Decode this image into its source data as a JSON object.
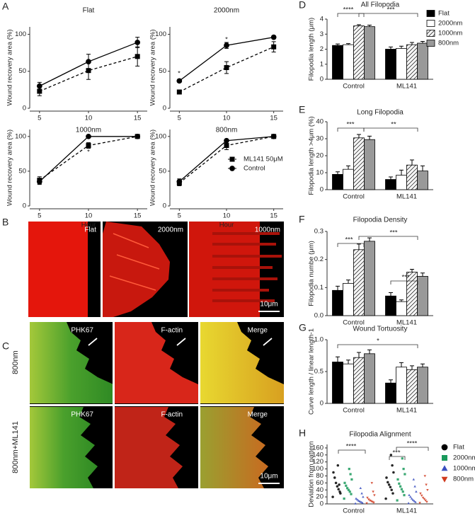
{
  "figure": {
    "panel_letters": [
      "A",
      "B",
      "C",
      "D",
      "E",
      "F",
      "G",
      "H"
    ],
    "panel_b": {
      "labels": [
        "Flat",
        "2000nm",
        "1000nm"
      ],
      "scale_bar": "10μm"
    },
    "panel_c": {
      "columns": [
        "PHK67",
        "F-actin",
        "Merge"
      ],
      "rows": [
        "800nm",
        "800nm+ML141"
      ],
      "scale_bar": "10μm"
    }
  },
  "chart_data": [
    {
      "type": "line",
      "title": "Flat",
      "ylabel": "Wound recovery area (%)",
      "x": [
        5,
        10,
        15
      ],
      "xlim": [
        4,
        16
      ],
      "xticks": [
        5,
        10,
        15
      ],
      "ylim": [
        0,
        110
      ],
      "yticks": [
        0,
        50,
        100
      ],
      "series": [
        {
          "name": "ML141 50μM",
          "color": "#000000",
          "marker": "square",
          "line_style": "dashed",
          "values": [
            23,
            51,
            70
          ],
          "errors": [
            6,
            12,
            13
          ]
        },
        {
          "name": "Control",
          "color": "#000000",
          "marker": "circle",
          "line_style": "solid",
          "values": [
            30,
            63,
            89
          ],
          "errors": [
            5,
            10,
            7
          ]
        }
      ]
    },
    {
      "type": "line",
      "title": "2000nm",
      "ylabel": "Wound recovery area (%)",
      "x": [
        5,
        10,
        15
      ],
      "xlim": [
        4,
        16
      ],
      "xticks": [
        5,
        10,
        15
      ],
      "ylim": [
        0,
        110
      ],
      "yticks": [
        0,
        50,
        100
      ],
      "series": [
        {
          "name": "ML141 50μM",
          "color": "#000000",
          "marker": "square",
          "line_style": "dashed",
          "values": [
            22,
            55,
            83
          ],
          "errors": [
            2,
            8,
            7
          ]
        },
        {
          "name": "Control",
          "color": "#000000",
          "marker": "circle",
          "line_style": "solid",
          "values": [
            37,
            85,
            96
          ],
          "errors": [
            2,
            4,
            2
          ]
        }
      ],
      "annotations": [
        "*",
        "*"
      ]
    },
    {
      "type": "line",
      "title": "1000nm",
      "ylabel": "Wound recovery area (%)",
      "xlabel": "Hour",
      "x": [
        5,
        10,
        15
      ],
      "xlim": [
        4,
        16
      ],
      "xticks": [
        5,
        10,
        15
      ],
      "ylim": [
        0,
        110
      ],
      "yticks": [
        0,
        50,
        100
      ],
      "series": [
        {
          "name": "ML141 50μM",
          "color": "#000000",
          "marker": "square",
          "line_style": "dashed",
          "values": [
            37,
            87,
            100
          ],
          "errors": [
            5,
            4,
            1
          ]
        },
        {
          "name": "Control",
          "color": "#000000",
          "marker": "circle",
          "line_style": "solid",
          "values": [
            35,
            100,
            100
          ],
          "errors": [
            4,
            1,
            1
          ]
        }
      ],
      "annotations": [
        "*"
      ]
    },
    {
      "type": "line",
      "title": "800nm",
      "ylabel": "Wound recovery area (%)",
      "xlabel": "Hour",
      "x": [
        5,
        10,
        15
      ],
      "xlim": [
        4,
        16
      ],
      "xticks": [
        5,
        10,
        15
      ],
      "ylim": [
        0,
        110
      ],
      "yticks": [
        0,
        50,
        100
      ],
      "legend": "lower right",
      "series": [
        {
          "name": "ML141 50μM",
          "color": "#000000",
          "marker": "square",
          "line_style": "dashed",
          "values": [
            33,
            87,
            100
          ],
          "errors": [
            4,
            6,
            1
          ]
        },
        {
          "name": "Control",
          "color": "#000000",
          "marker": "circle",
          "line_style": "solid",
          "values": [
            35,
            94,
            100
          ],
          "errors": [
            4,
            2,
            1
          ]
        }
      ]
    },
    {
      "type": "bar",
      "title": "All Filopodia",
      "ylabel": "Filopodia length (μm)",
      "categories": [
        "Control",
        "ML141"
      ],
      "ylim": [
        0,
        4
      ],
      "yticks": [
        0,
        1,
        2,
        3,
        4
      ],
      "legend": "upper right",
      "series": [
        {
          "name": "Flat",
          "color": "#000000",
          "values": [
            2.25,
            2.0
          ],
          "errors": [
            0.1,
            0.15
          ]
        },
        {
          "name": "2000nm",
          "color": "#ffffff",
          "values": [
            2.3,
            2.05
          ],
          "errors": [
            0.07,
            0.15
          ]
        },
        {
          "name": "1000nm",
          "color": "#ffffff",
          "hatch": true,
          "values": [
            3.55,
            2.3
          ],
          "errors": [
            0.08,
            0.15
          ]
        },
        {
          "name": "800nm",
          "color": "#999999",
          "values": [
            3.5,
            2.4
          ],
          "errors": [
            0.1,
            0.12
          ]
        }
      ],
      "annotations": [
        "****",
        "***"
      ]
    },
    {
      "type": "bar",
      "title": "Long Filopodia",
      "ylabel": "Filopodia length >4μm (%)",
      "categories": [
        "Control",
        "ML141"
      ],
      "ylim": [
        0,
        40
      ],
      "yticks": [
        0,
        10,
        20,
        30,
        40
      ],
      "series": [
        {
          "name": "Flat",
          "color": "#000000",
          "values": [
            9,
            6
          ],
          "errors": [
            1.5,
            1.5
          ]
        },
        {
          "name": "2000nm",
          "color": "#ffffff",
          "values": [
            12,
            8.5
          ],
          "errors": [
            2,
            3
          ]
        },
        {
          "name": "1000nm",
          "color": "#ffffff",
          "hatch": true,
          "values": [
            30.5,
            14.5
          ],
          "errors": [
            2,
            3
          ]
        },
        {
          "name": "800nm",
          "color": "#999999",
          "values": [
            29.5,
            11
          ],
          "errors": [
            2,
            3
          ]
        }
      ],
      "annotations": [
        "***",
        "**"
      ]
    },
    {
      "type": "bar",
      "title": "Filopodia Density",
      "ylabel": "Filopodia numbe (μm)",
      "categories": [
        "Control",
        "ML141"
      ],
      "ylim": [
        0,
        0.3
      ],
      "yticks": [
        {
          "value": 0,
          "label": "0.0"
        },
        0.1,
        0.2,
        0.3
      ],
      "series": [
        {
          "name": "Flat",
          "color": "#000000",
          "values": [
            0.09,
            0.07
          ],
          "errors": [
            0.015,
            0.012
          ]
        },
        {
          "name": "2000nm",
          "color": "#ffffff",
          "values": [
            0.115,
            0.05
          ],
          "errors": [
            0.012,
            0.006
          ]
        },
        {
          "name": "1000nm",
          "color": "#ffffff",
          "hatch": true,
          "values": [
            0.235,
            0.155
          ],
          "errors": [
            0.02,
            0.01
          ]
        },
        {
          "name": "800nm",
          "color": "#999999",
          "values": [
            0.265,
            0.14
          ],
          "errors": [
            0.012,
            0.012
          ]
        }
      ],
      "annotations": [
        "***",
        "***",
        "***"
      ]
    },
    {
      "type": "bar",
      "title": "Wound Tortuosity",
      "ylabel": "Curve length / linear length-1",
      "categories": [
        "Control",
        "ML141"
      ],
      "ylim": [
        0,
        1
      ],
      "yticks": [
        0,
        0.5,
        {
          "value": 1,
          "label": "1.0"
        }
      ],
      "series": [
        {
          "name": "Flat",
          "color": "#000000",
          "values": [
            0.65,
            0.32
          ],
          "errors": [
            0.08,
            0.05
          ]
        },
        {
          "name": "2000nm",
          "color": "#ffffff",
          "values": [
            0.62,
            0.57
          ],
          "errors": [
            0.06,
            0.07
          ]
        },
        {
          "name": "1000nm",
          "color": "#ffffff",
          "hatch": true,
          "values": [
            0.72,
            0.53
          ],
          "errors": [
            0.08,
            0.06
          ]
        },
        {
          "name": "800nm",
          "color": "#999999",
          "values": [
            0.78,
            0.57
          ],
          "errors": [
            0.06,
            0.05
          ]
        }
      ],
      "annotations": [
        "*"
      ]
    },
    {
      "type": "strip",
      "title": "Filopodia Alignment",
      "ylabel": "Deviation from pattern",
      "categories": [
        "Control",
        "ML141"
      ],
      "ylim": [
        0,
        170
      ],
      "yticks": [
        0,
        20,
        40,
        60,
        80,
        100,
        120,
        140,
        160
      ],
      "legend": "right",
      "series": [
        {
          "name": "Flat",
          "color": "#000000",
          "marker": "circle",
          "values": [
            [
              20,
              35,
              42,
              50,
              60,
              75,
              90,
              30,
              55,
              110
            ],
            [
              15,
              30,
              40,
              48,
              55,
              62,
              75,
              90,
              110,
              140
            ]
          ]
        },
        {
          "name": "2000nm",
          "color": "#1a9a5c",
          "marker": "square",
          "values": [
            [
              15,
              28,
              35,
              40,
              45,
              52,
              60,
              70,
              85,
              100
            ],
            [
              10,
              25,
              35,
              42,
              50,
              58,
              70,
              85,
              100,
              130
            ]
          ]
        },
        {
          "name": "1000nm",
          "color": "#3a4fc0",
          "marker": "triangle-up",
          "values": [
            [
              1,
              3,
              5,
              7,
              9,
              12,
              15,
              20,
              30,
              45
            ],
            [
              2,
              5,
              8,
              11,
              15,
              20,
              25,
              35,
              50,
              70
            ]
          ]
        },
        {
          "name": "800nm",
          "color": "#d03a1e",
          "marker": "triangle-down",
          "values": [
            [
              2,
              4,
              6,
              8,
              10,
              13,
              18,
              25,
              35,
              60
            ],
            [
              3,
              6,
              10,
              14,
              18,
              24,
              30,
              40,
              55,
              80
            ]
          ]
        }
      ],
      "annotations": [
        "****",
        "***",
        "****"
      ]
    }
  ]
}
